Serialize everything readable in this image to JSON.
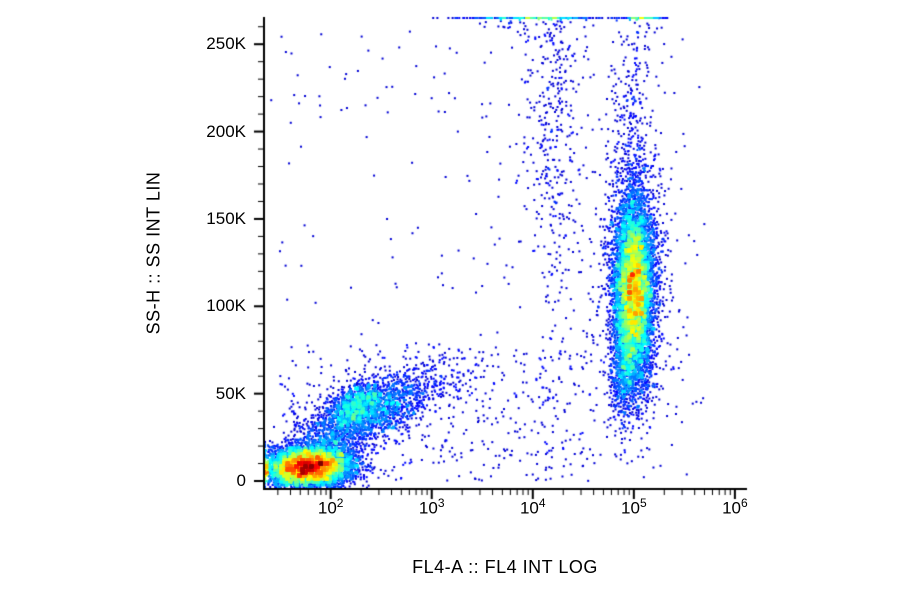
{
  "colors": {
    "background": "#ffffff",
    "axis": "#000000",
    "text": "#000000",
    "colormap": "jet"
  },
  "chart_data": {
    "type": "scatter",
    "subtype": "flow-cytometry-pseudocolor-density",
    "title": "",
    "xlabel": "FL4-A :: FL4 INT LOG",
    "ylabel": "SS-H :: SS INT LIN",
    "x_scale": "log10",
    "x_log_range": [
      1.35,
      6.1
    ],
    "y_range": [
      -4000,
      265000
    ],
    "grid": false,
    "legend": false,
    "x_ticks": [
      {
        "base": "10",
        "exp": "2",
        "log_value": 2
      },
      {
        "base": "10",
        "exp": "3",
        "log_value": 3
      },
      {
        "base": "10",
        "exp": "4",
        "log_value": 4
      },
      {
        "base": "10",
        "exp": "5",
        "log_value": 5
      },
      {
        "base": "10",
        "exp": "6",
        "log_value": 6
      }
    ],
    "y_ticks": [
      {
        "value": 0,
        "label": "0"
      },
      {
        "value": 50000,
        "label": "50K"
      },
      {
        "value": 100000,
        "label": "100K"
      },
      {
        "value": 150000,
        "label": "150K"
      },
      {
        "value": 200000,
        "label": "200K"
      },
      {
        "value": 250000,
        "label": "250K"
      }
    ],
    "y_minor_step": 10000,
    "populations": [
      {
        "name": "debris-negative-cluster",
        "count": 6000,
        "x_log_mean": 1.78,
        "x_log_sd": 0.22,
        "y_mean": 8000,
        "y_sd": 6000,
        "rho": 0.1
      },
      {
        "name": "diagonal-smear",
        "count": 2200,
        "x_log_mean": 2.35,
        "x_log_sd": 0.38,
        "y_mean": 38000,
        "y_sd": 13000,
        "rho": 0.72
      },
      {
        "name": "diagonal-smear-core",
        "count": 700,
        "x_log_mean": 2.25,
        "x_log_sd": 0.13,
        "y_mean": 44000,
        "y_sd": 6500,
        "rho": 0.4
      },
      {
        "name": "positive-main-population",
        "count": 7500,
        "x_log_mean": 5.0,
        "x_log_sd": 0.1,
        "y_mean": 110000,
        "y_sd": 27000,
        "rho": 0
      },
      {
        "name": "positive-lower-tail",
        "count": 450,
        "x_log_mean": 4.9,
        "x_log_sd": 0.06,
        "y_mean": 64000,
        "y_sd": 14000,
        "rho": 0.25
      },
      {
        "name": "positive-upper-tail",
        "count": 350,
        "x_log_mean": 4.97,
        "x_log_sd": 0.11,
        "y_mean": 190000,
        "y_sd": 45000,
        "rho": 0
      },
      {
        "name": "positive-halo",
        "count": 600,
        "x_log_mean": 4.98,
        "x_log_sd": 0.2,
        "y_mean": 115000,
        "y_sd": 48000,
        "rho": 0
      },
      {
        "name": "mid-log-sparse-column",
        "count": 430,
        "x_log_mean": 4.2,
        "x_log_sd": 0.14,
        "y_mean": 205000,
        "y_sd": 55000,
        "rho": 0
      },
      {
        "name": "top-edge-pileup-mid",
        "count": 300,
        "x_log_mean": 3.95,
        "x_log_sd": 0.35,
        "y_mean": 278000,
        "y_sd": 12000,
        "rho": 0
      },
      {
        "name": "top-edge-pileup-right",
        "count": 130,
        "x_log_mean": 5.1,
        "x_log_sd": 0.1,
        "y_mean": 278000,
        "y_sd": 8000,
        "rho": 0
      },
      {
        "name": "background-low-ss",
        "count": 420,
        "uniform": true,
        "x_log_uniform_range": [
          1.5,
          4.6
        ],
        "y_uniform_range": [
          0,
          75000
        ]
      },
      {
        "name": "background-sparse-all",
        "count": 260,
        "uniform": true,
        "x_log_uniform_range": [
          1.4,
          5.7
        ],
        "y_uniform_range": [
          0,
          258000
        ]
      }
    ]
  }
}
